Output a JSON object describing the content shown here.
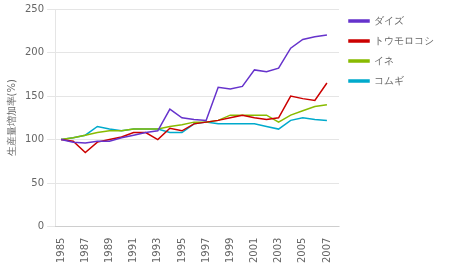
{
  "chart_data": {
    "type": "line",
    "y_label": "生産量増加率(%)",
    "x": [
      1985,
      1986,
      1987,
      1988,
      1989,
      1990,
      1991,
      1992,
      1993,
      1994,
      1995,
      1996,
      1997,
      1998,
      1999,
      2000,
      2001,
      2002,
      2003,
      2004,
      2005,
      2006,
      2007
    ],
    "series": [
      {
        "name": "ダイズ",
        "color": "#6633cc",
        "values": [
          100,
          97,
          96,
          98,
          98,
          102,
          105,
          108,
          110,
          135,
          125,
          123,
          122,
          160,
          158,
          161,
          180,
          178,
          182,
          205,
          215,
          218,
          220
        ]
      },
      {
        "name": "トウモロコシ",
        "color": "#cc0000",
        "values": [
          100,
          98,
          85,
          97,
          100,
          103,
          108,
          108,
          100,
          113,
          110,
          118,
          120,
          122,
          125,
          128,
          125,
          123,
          125,
          150,
          147,
          145,
          165
        ]
      },
      {
        "name": "イネ",
        "color": "#88bb00",
        "values": [
          100,
          102,
          105,
          108,
          110,
          110,
          112,
          112,
          112,
          115,
          117,
          120,
          120,
          122,
          128,
          128,
          128,
          128,
          120,
          128,
          133,
          138,
          140
        ]
      },
      {
        "name": "コムギ",
        "color": "#00aacc",
        "values": [
          100,
          102,
          105,
          115,
          112,
          110,
          112,
          112,
          112,
          108,
          108,
          118,
          120,
          118,
          118,
          118,
          118,
          115,
          112,
          122,
          125,
          123,
          122
        ]
      }
    ],
    "xlim": [
      1984.5,
      2008.0
    ],
    "xticks": [
      1985,
      1987,
      1989,
      1991,
      1993,
      1995,
      1997,
      1999,
      2001,
      2003,
      2005,
      2007
    ],
    "ylim": [
      0,
      250
    ],
    "yticks": [
      0,
      50,
      100,
      150,
      200,
      250
    ],
    "grid": "y",
    "legend": "right"
  }
}
